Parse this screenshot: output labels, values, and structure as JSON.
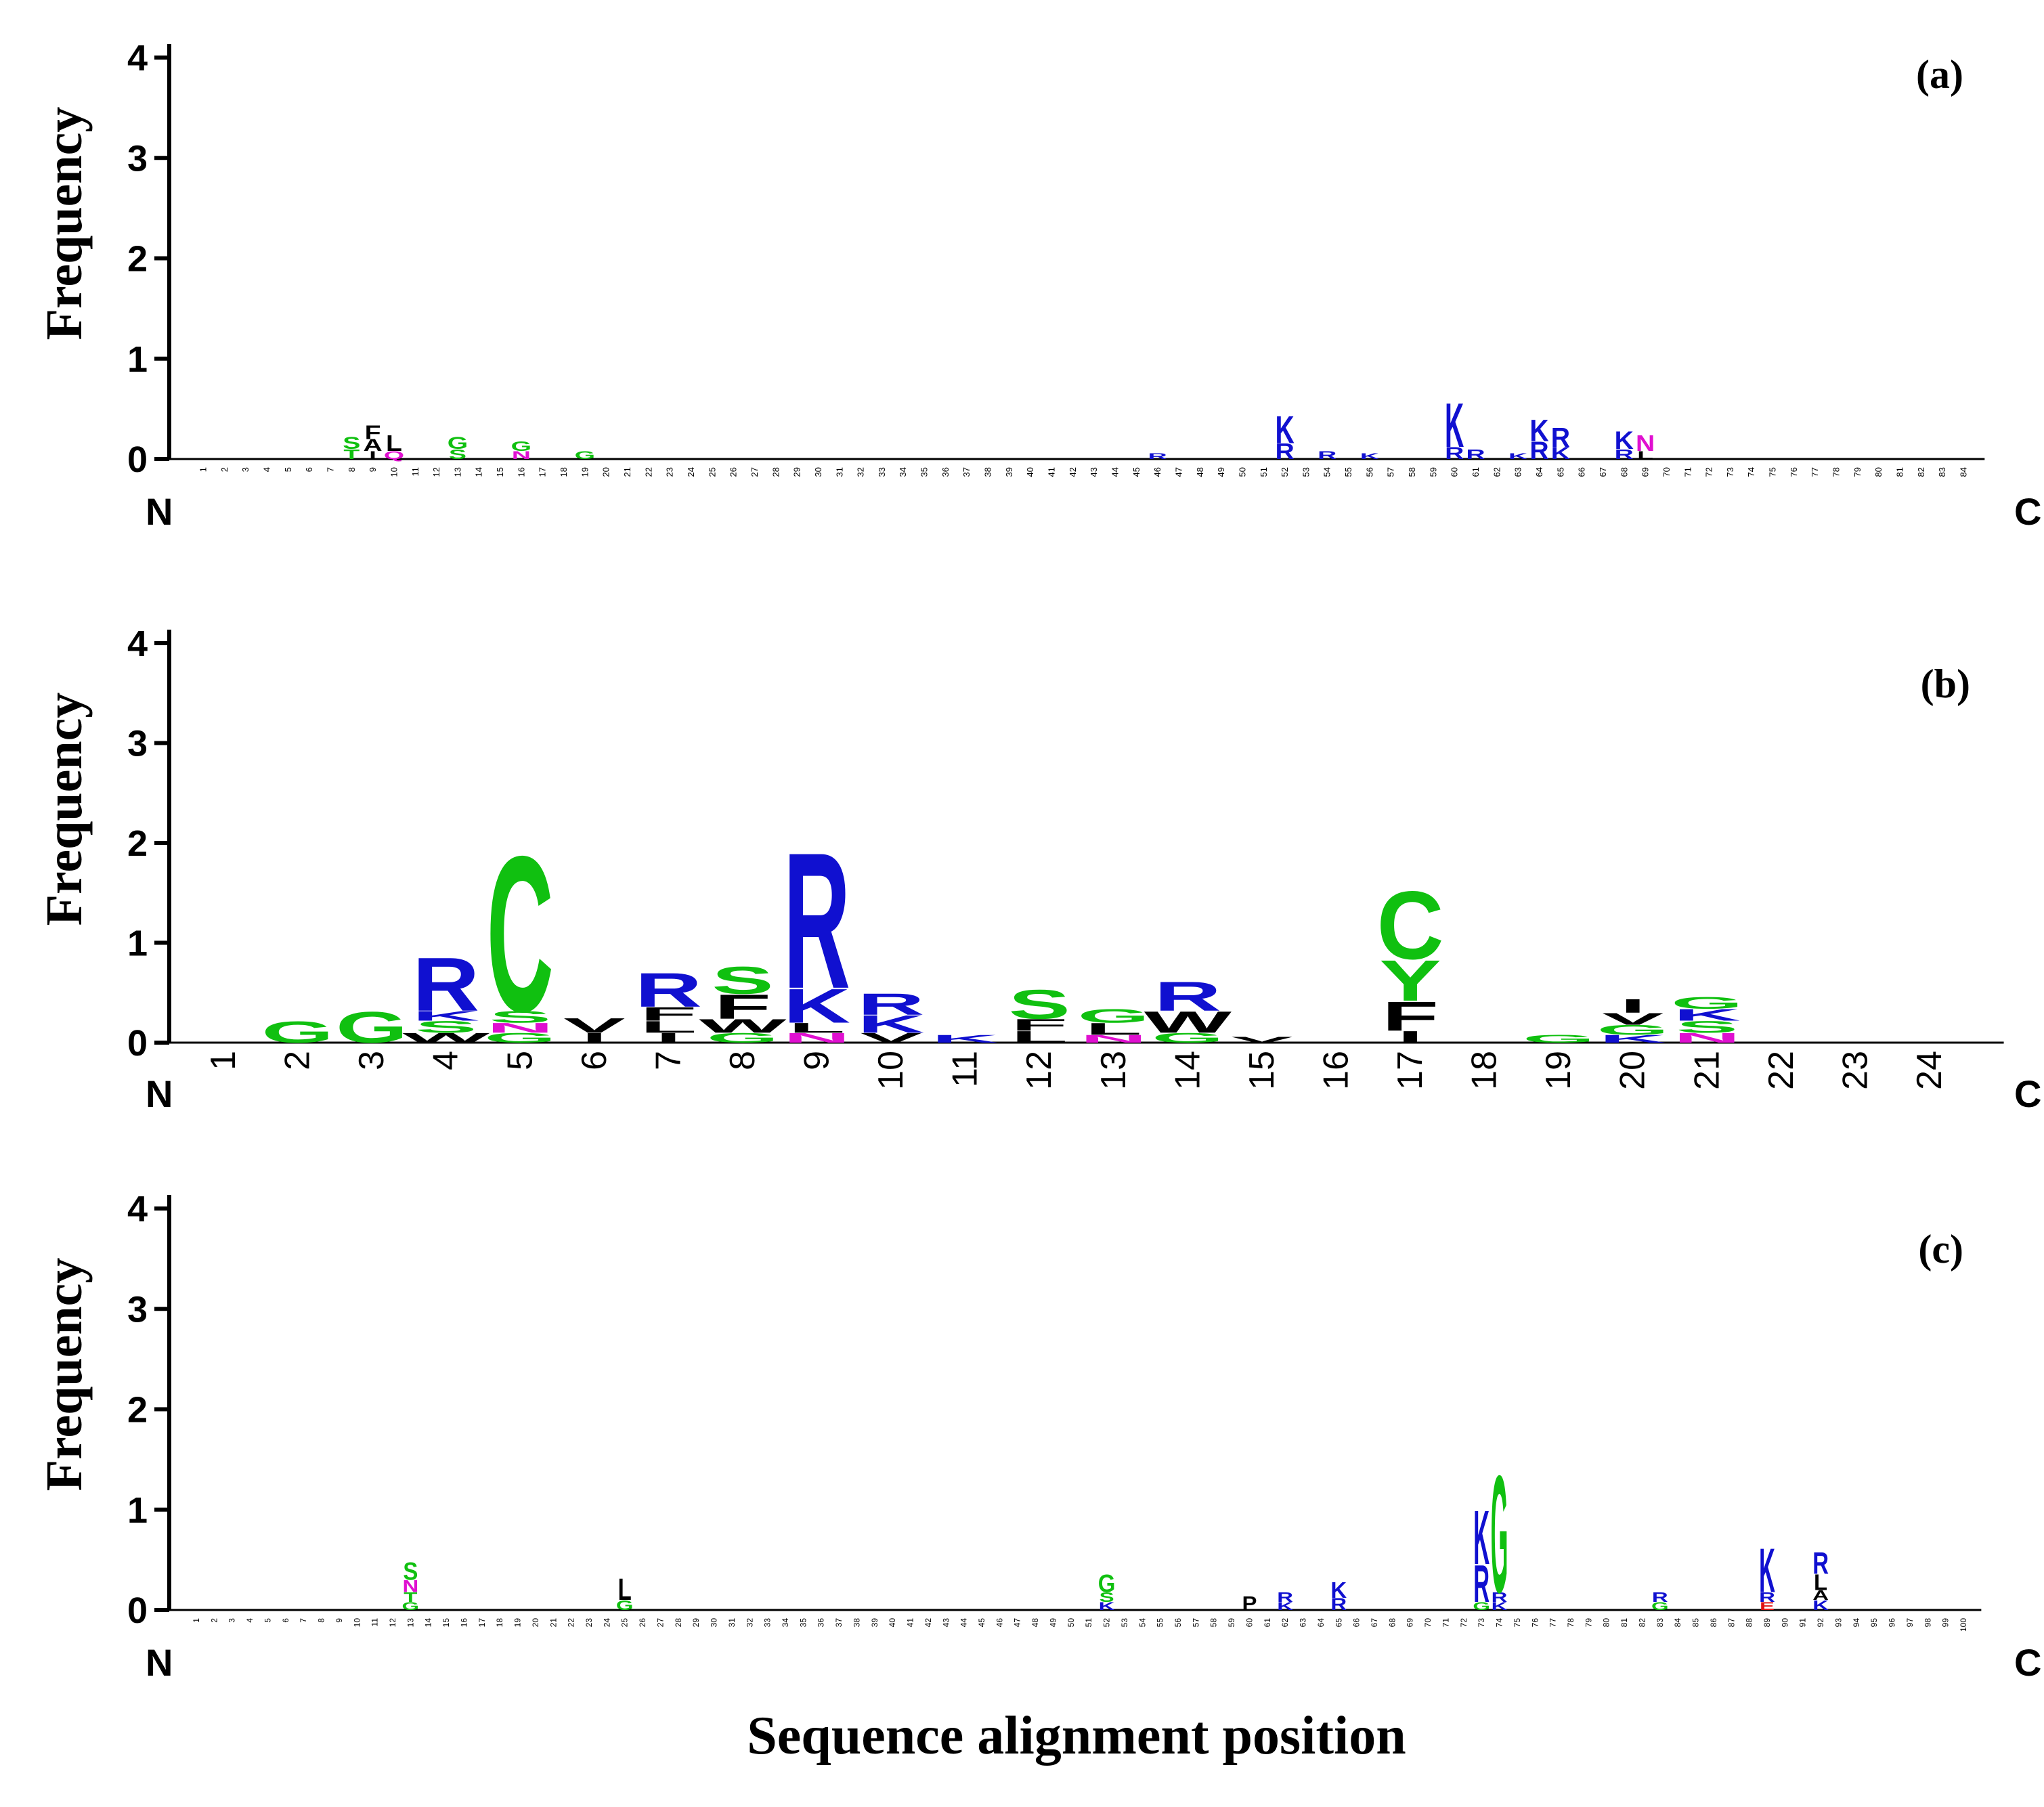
{
  "figure": {
    "xlabel": "Sequence alignment position",
    "colors": {
      "basic": "#1010d0",
      "polar": "#10c010",
      "hydrophobic": "#000000",
      "amide": "#e010d0",
      "acidic": "#e01010"
    }
  },
  "chart_data": [
    {
      "type": "bar",
      "panel_label": "(a)",
      "ylabel": "Frequency",
      "ylim": [
        0,
        4
      ],
      "yticks": [
        "0",
        "1",
        "2",
        "3",
        "4"
      ],
      "n_label": "N",
      "c_label": "C",
      "positions": [
        "1",
        "2",
        "3",
        "4",
        "5",
        "6",
        "7",
        "8",
        "9",
        "10",
        "11",
        "12",
        "13",
        "14",
        "15",
        "16",
        "17",
        "18",
        "19",
        "20",
        "21",
        "22",
        "23",
        "24",
        "25",
        "26",
        "27",
        "28",
        "29",
        "30",
        "31",
        "32",
        "33",
        "34",
        "35",
        "36",
        "37",
        "38",
        "39",
        "40",
        "41",
        "42",
        "43",
        "44",
        "45",
        "46",
        "47",
        "48",
        "49",
        "50",
        "51",
        "52",
        "53",
        "54",
        "55",
        "56",
        "57",
        "58",
        "59",
        "60",
        "61",
        "62",
        "63",
        "64",
        "65",
        "66",
        "67",
        "68",
        "69",
        "70",
        "71",
        "72",
        "73",
        "74",
        "75",
        "76",
        "77",
        "78",
        "79",
        "80",
        "81",
        "82",
        "83",
        "84"
      ],
      "stacks": [
        {
          "pos": 8,
          "letters": [
            {
              "aa": "S",
              "h": 0.12,
              "class": "polar"
            },
            {
              "aa": "T",
              "h": 0.1,
              "class": "polar"
            }
          ]
        },
        {
          "pos": 9,
          "letters": [
            {
              "aa": "F",
              "h": 0.14,
              "class": "hydrophobic"
            },
            {
              "aa": "A",
              "h": 0.12,
              "class": "hydrophobic"
            },
            {
              "aa": "I",
              "h": 0.08,
              "class": "hydrophobic"
            }
          ]
        },
        {
          "pos": 10,
          "letters": [
            {
              "aa": "L",
              "h": 0.16,
              "class": "hydrophobic"
            },
            {
              "aa": "Q",
              "h": 0.08,
              "class": "amide"
            }
          ]
        },
        {
          "pos": 13,
          "letters": [
            {
              "aa": "G",
              "h": 0.12,
              "class": "polar"
            },
            {
              "aa": "S",
              "h": 0.1,
              "class": "polar"
            }
          ]
        },
        {
          "pos": 16,
          "letters": [
            {
              "aa": "G",
              "h": 0.1,
              "class": "polar"
            },
            {
              "aa": "N",
              "h": 0.08,
              "class": "amide"
            }
          ]
        },
        {
          "pos": 19,
          "letters": [
            {
              "aa": "G",
              "h": 0.08,
              "class": "polar"
            }
          ]
        },
        {
          "pos": 46,
          "letters": [
            {
              "aa": "R",
              "h": 0.06,
              "class": "basic"
            }
          ]
        },
        {
          "pos": 52,
          "letters": [
            {
              "aa": "K",
              "h": 0.28,
              "class": "basic"
            },
            {
              "aa": "R",
              "h": 0.16,
              "class": "basic"
            }
          ]
        },
        {
          "pos": 54,
          "letters": [
            {
              "aa": "R",
              "h": 0.08,
              "class": "basic"
            }
          ]
        },
        {
          "pos": 56,
          "letters": [
            {
              "aa": "K",
              "h": 0.06,
              "class": "basic"
            }
          ]
        },
        {
          "pos": 60,
          "letters": [
            {
              "aa": "K",
              "h": 0.45,
              "class": "basic"
            },
            {
              "aa": "R",
              "h": 0.12,
              "class": "basic"
            }
          ]
        },
        {
          "pos": 61,
          "letters": [
            {
              "aa": "R",
              "h": 0.1,
              "class": "basic"
            }
          ]
        },
        {
          "pos": 63,
          "letters": [
            {
              "aa": "K",
              "h": 0.06,
              "class": "basic"
            }
          ]
        },
        {
          "pos": 64,
          "letters": [
            {
              "aa": "K",
              "h": 0.22,
              "class": "basic"
            },
            {
              "aa": "R",
              "h": 0.18,
              "class": "basic"
            }
          ]
        },
        {
          "pos": 65,
          "letters": [
            {
              "aa": "R",
              "h": 0.2,
              "class": "basic"
            },
            {
              "aa": "K",
              "h": 0.12,
              "class": "basic"
            }
          ]
        },
        {
          "pos": 68,
          "letters": [
            {
              "aa": "K",
              "h": 0.18,
              "class": "basic"
            },
            {
              "aa": "R",
              "h": 0.1,
              "class": "basic"
            }
          ]
        },
        {
          "pos": 69,
          "letters": [
            {
              "aa": "N",
              "h": 0.16,
              "class": "amide"
            },
            {
              "aa": "L",
              "h": 0.08,
              "class": "hydrophobic"
            }
          ]
        }
      ]
    },
    {
      "type": "bar",
      "panel_label": "(b)",
      "ylabel": "Frequency",
      "ylim": [
        0,
        4
      ],
      "yticks": [
        "0",
        "1",
        "2",
        "3",
        "4"
      ],
      "n_label": "N",
      "c_label": "C",
      "positions": [
        "1",
        "2",
        "3",
        "4",
        "5",
        "6",
        "7",
        "8",
        "9",
        "10",
        "11",
        "12",
        "13",
        "14",
        "15",
        "16",
        "17",
        "18",
        "19",
        "20",
        "21",
        "22",
        "23",
        "24"
      ],
      "stacks": [
        {
          "pos": 2,
          "letters": [
            {
              "aa": "G",
              "h": 0.22,
              "class": "polar"
            }
          ]
        },
        {
          "pos": 3,
          "letters": [
            {
              "aa": "G",
              "h": 0.32,
              "class": "polar"
            }
          ]
        },
        {
          "pos": 4,
          "letters": [
            {
              "aa": "R",
              "h": 0.55,
              "class": "basic"
            },
            {
              "aa": "K",
              "h": 0.1,
              "class": "basic"
            },
            {
              "aa": "S",
              "h": 0.12,
              "class": "polar"
            },
            {
              "aa": "W",
              "h": 0.1,
              "class": "hydrophobic"
            }
          ]
        },
        {
          "pos": 5,
          "letters": [
            {
              "aa": "C",
              "h": 1.6,
              "class": "polar"
            },
            {
              "aa": "S",
              "h": 0.12,
              "class": "polar"
            },
            {
              "aa": "N",
              "h": 0.1,
              "class": "amide"
            },
            {
              "aa": "G",
              "h": 0.1,
              "class": "polar"
            }
          ]
        },
        {
          "pos": 6,
          "letters": [
            {
              "aa": "V",
              "h": 0.15,
              "class": "hydrophobic"
            },
            {
              "aa": "I",
              "h": 0.1,
              "class": "hydrophobic"
            }
          ]
        },
        {
          "pos": 7,
          "letters": [
            {
              "aa": "R",
              "h": 0.35,
              "class": "basic"
            },
            {
              "aa": "F",
              "h": 0.14,
              "class": "hydrophobic"
            },
            {
              "aa": "L",
              "h": 0.12,
              "class": "hydrophobic"
            },
            {
              "aa": "I",
              "h": 0.1,
              "class": "hydrophobic"
            }
          ]
        },
        {
          "pos": 8,
          "letters": [
            {
              "aa": "S",
              "h": 0.28,
              "class": "polar"
            },
            {
              "aa": "F",
              "h": 0.25,
              "class": "hydrophobic"
            },
            {
              "aa": "W",
              "h": 0.14,
              "class": "hydrophobic"
            },
            {
              "aa": "G",
              "h": 0.1,
              "class": "polar"
            }
          ]
        },
        {
          "pos": 9,
          "letters": [
            {
              "aa": "R",
              "h": 1.4,
              "class": "basic"
            },
            {
              "aa": "K",
              "h": 0.35,
              "class": "basic"
            },
            {
              "aa": "L",
              "h": 0.1,
              "class": "hydrophobic"
            },
            {
              "aa": "N",
              "h": 0.1,
              "class": "amide"
            }
          ]
        },
        {
          "pos": 10,
          "letters": [
            {
              "aa": "R",
              "h": 0.22,
              "class": "basic"
            },
            {
              "aa": "K",
              "h": 0.18,
              "class": "basic"
            },
            {
              "aa": "V",
              "h": 0.1,
              "class": "hydrophobic"
            }
          ]
        },
        {
          "pos": 11,
          "letters": [
            {
              "aa": "K",
              "h": 0.08,
              "class": "basic"
            }
          ]
        },
        {
          "pos": 12,
          "letters": [
            {
              "aa": "S",
              "h": 0.3,
              "class": "polar"
            },
            {
              "aa": "F",
              "h": 0.12,
              "class": "hydrophobic"
            },
            {
              "aa": "L",
              "h": 0.12,
              "class": "hydrophobic"
            }
          ]
        },
        {
          "pos": 13,
          "letters": [
            {
              "aa": "G",
              "h": 0.14,
              "class": "polar"
            },
            {
              "aa": "L",
              "h": 0.12,
              "class": "hydrophobic"
            },
            {
              "aa": "N",
              "h": 0.08,
              "class": "amide"
            }
          ]
        },
        {
          "pos": 14,
          "letters": [
            {
              "aa": "R",
              "h": 0.3,
              "class": "basic"
            },
            {
              "aa": "W",
              "h": 0.22,
              "class": "hydrophobic"
            },
            {
              "aa": "G",
              "h": 0.1,
              "class": "polar"
            }
          ]
        },
        {
          "pos": 15,
          "letters": [
            {
              "aa": "V",
              "h": 0.06,
              "class": "hydrophobic"
            }
          ]
        },
        {
          "pos": 17,
          "letters": [
            {
              "aa": "C",
              "h": 0.7,
              "class": "polar"
            },
            {
              "aa": "Y",
              "h": 0.42,
              "class": "polar"
            },
            {
              "aa": "F",
              "h": 0.3,
              "class": "hydrophobic"
            },
            {
              "aa": "I",
              "h": 0.12,
              "class": "hydrophobic"
            }
          ]
        },
        {
          "pos": 19,
          "letters": [
            {
              "aa": "G",
              "h": 0.08,
              "class": "polar"
            }
          ]
        },
        {
          "pos": 20,
          "letters": [
            {
              "aa": "I",
              "h": 0.14,
              "class": "hydrophobic"
            },
            {
              "aa": "V",
              "h": 0.12,
              "class": "hydrophobic"
            },
            {
              "aa": "G",
              "h": 0.1,
              "class": "polar"
            },
            {
              "aa": "K",
              "h": 0.08,
              "class": "basic"
            }
          ]
        },
        {
          "pos": 21,
          "letters": [
            {
              "aa": "G",
              "h": 0.12,
              "class": "polar"
            },
            {
              "aa": "K",
              "h": 0.12,
              "class": "basic"
            },
            {
              "aa": "S",
              "h": 0.12,
              "class": "polar"
            },
            {
              "aa": "N",
              "h": 0.1,
              "class": "amide"
            }
          ]
        }
      ]
    },
    {
      "type": "bar",
      "panel_label": "(c)",
      "ylabel": "Frequency",
      "ylim": [
        0,
        4
      ],
      "yticks": [
        "0",
        "1",
        "2",
        "3",
        "4"
      ],
      "n_label": "N",
      "c_label": "C",
      "positions": [
        "1",
        "2",
        "3",
        "4",
        "5",
        "6",
        "7",
        "8",
        "9",
        "10",
        "11",
        "12",
        "13",
        "14",
        "15",
        "16",
        "17",
        "18",
        "19",
        "20",
        "21",
        "22",
        "23",
        "24",
        "25",
        "26",
        "27",
        "28",
        "29",
        "30",
        "31",
        "32",
        "33",
        "34",
        "35",
        "36",
        "37",
        "38",
        "39",
        "40",
        "41",
        "42",
        "43",
        "44",
        "45",
        "46",
        "47",
        "48",
        "49",
        "50",
        "51",
        "52",
        "53",
        "54",
        "55",
        "56",
        "57",
        "58",
        "59",
        "60",
        "61",
        "62",
        "63",
        "64",
        "65",
        "66",
        "67",
        "68",
        "69",
        "70",
        "71",
        "72",
        "73",
        "74",
        "75",
        "76",
        "77",
        "78",
        "79",
        "80",
        "81",
        "82",
        "83",
        "84",
        "85",
        "86",
        "87",
        "88",
        "89",
        "90",
        "91",
        "92",
        "93",
        "94",
        "95",
        "96",
        "97",
        "98",
        "99",
        "100"
      ],
      "stacks": [
        {
          "pos": 13,
          "letters": [
            {
              "aa": "S",
              "h": 0.18,
              "class": "polar"
            },
            {
              "aa": "N",
              "h": 0.12,
              "class": "amide"
            },
            {
              "aa": "T",
              "h": 0.1,
              "class": "polar"
            },
            {
              "aa": "G",
              "h": 0.08,
              "class": "polar"
            }
          ]
        },
        {
          "pos": 25,
          "letters": [
            {
              "aa": "L",
              "h": 0.22,
              "class": "hydrophobic"
            },
            {
              "aa": "G",
              "h": 0.1,
              "class": "polar"
            }
          ]
        },
        {
          "pos": 52,
          "letters": [
            {
              "aa": "G",
              "h": 0.18,
              "class": "polar"
            },
            {
              "aa": "S",
              "h": 0.1,
              "class": "polar"
            },
            {
              "aa": "K",
              "h": 0.08,
              "class": "basic"
            }
          ]
        },
        {
          "pos": 60,
          "letters": [
            {
              "aa": "P",
              "h": 0.14,
              "class": "hydrophobic"
            }
          ]
        },
        {
          "pos": 62,
          "letters": [
            {
              "aa": "R",
              "h": 0.1,
              "class": "basic"
            },
            {
              "aa": "K",
              "h": 0.08,
              "class": "basic"
            }
          ]
        },
        {
          "pos": 65,
          "letters": [
            {
              "aa": "K",
              "h": 0.16,
              "class": "basic"
            },
            {
              "aa": "R",
              "h": 0.12,
              "class": "basic"
            }
          ]
        },
        {
          "pos": 73,
          "letters": [
            {
              "aa": "K",
              "h": 0.55,
              "class": "basic"
            },
            {
              "aa": "R",
              "h": 0.38,
              "class": "basic"
            },
            {
              "aa": "G",
              "h": 0.08,
              "class": "polar"
            }
          ]
        },
        {
          "pos": 74,
          "letters": [
            {
              "aa": "G",
              "h": 1.2,
              "class": "polar"
            },
            {
              "aa": "R",
              "h": 0.1,
              "class": "basic"
            },
            {
              "aa": "K",
              "h": 0.08,
              "class": "basic"
            }
          ]
        },
        {
          "pos": 83,
          "letters": [
            {
              "aa": "R",
              "h": 0.1,
              "class": "basic"
            },
            {
              "aa": "G",
              "h": 0.08,
              "class": "polar"
            }
          ]
        },
        {
          "pos": 89,
          "letters": [
            {
              "aa": "K",
              "h": 0.45,
              "class": "basic"
            },
            {
              "aa": "R",
              "h": 0.1,
              "class": "basic"
            },
            {
              "aa": "E",
              "h": 0.08,
              "class": "acidic"
            }
          ]
        },
        {
          "pos": 92,
          "letters": [
            {
              "aa": "R",
              "h": 0.22,
              "class": "basic"
            },
            {
              "aa": "L",
              "h": 0.16,
              "class": "hydrophobic"
            },
            {
              "aa": "A",
              "h": 0.1,
              "class": "hydrophobic"
            },
            {
              "aa": "K",
              "h": 0.1,
              "class": "basic"
            }
          ]
        }
      ]
    }
  ]
}
